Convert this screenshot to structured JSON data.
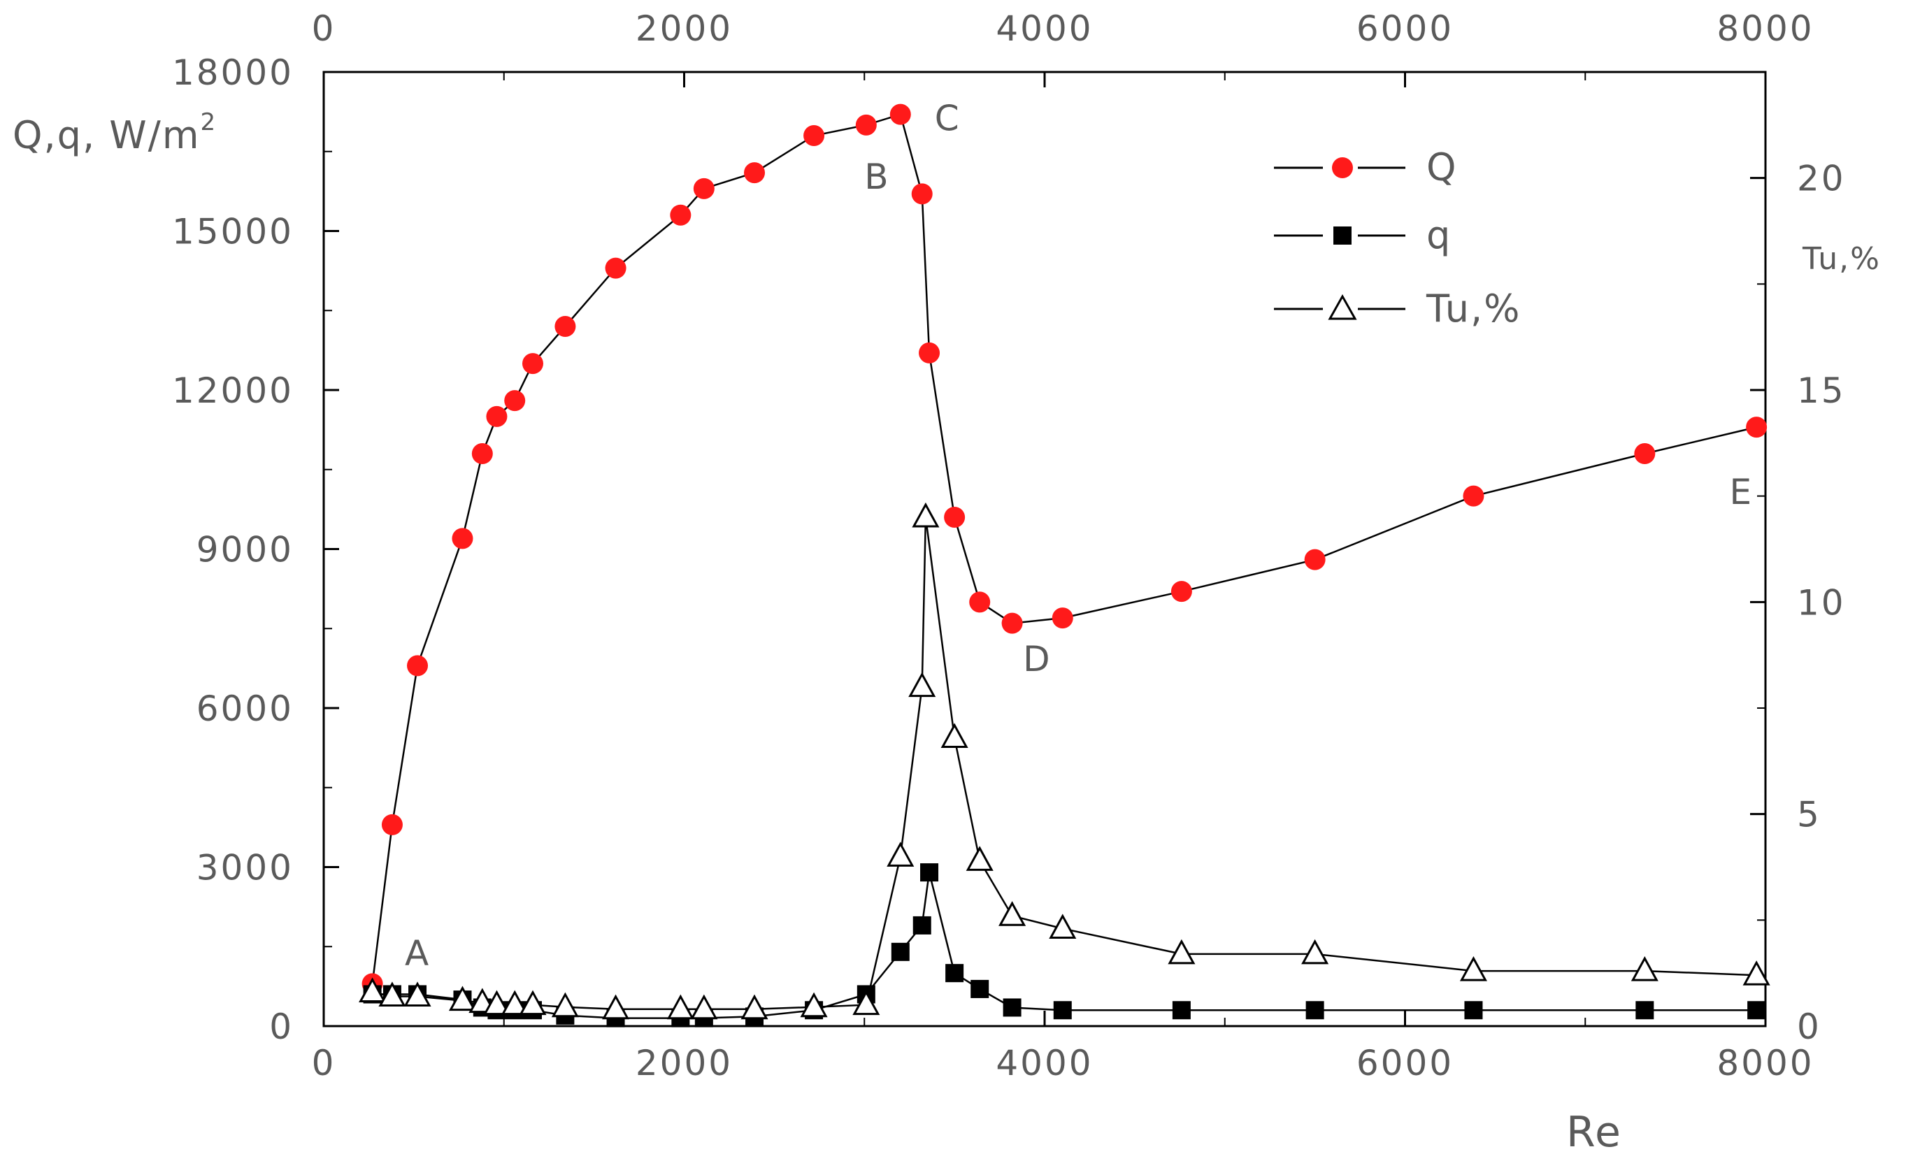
{
  "chart_data": {
    "type": "line",
    "xlabel": "Re",
    "ylabel": "Q,q, W/m",
    "ylabel_superscript": "2",
    "y2label": "Tu,%",
    "xlim": [
      0,
      8000
    ],
    "ylim": [
      0,
      18000
    ],
    "y2lim": [
      0,
      22.5
    ],
    "x_ticks": [
      "0",
      "2000",
      "4000",
      "6000",
      "8000"
    ],
    "x_tick_values": [
      0,
      2000,
      4000,
      6000,
      8000
    ],
    "y_ticks": [
      "0",
      "3000",
      "6000",
      "9000",
      "12000",
      "15000",
      "18000"
    ],
    "y_tick_values": [
      0,
      3000,
      6000,
      9000,
      12000,
      15000,
      18000
    ],
    "y2_ticks": [
      "0",
      "5",
      "10",
      "15",
      "20"
    ],
    "y2_tick_values": [
      0,
      5,
      10,
      15,
      20
    ],
    "grid": false,
    "legend_position": "top-right",
    "series": [
      {
        "name": "Q",
        "axis": "left",
        "marker": "filled-circle",
        "color": "#ff1a1a",
        "x": [
          270,
          380,
          520,
          770,
          880,
          960,
          1060,
          1160,
          1340,
          1620,
          1980,
          2110,
          2390,
          2720,
          3010,
          3200,
          3320,
          3360,
          3500,
          3640,
          3820,
          4100,
          4760,
          5500,
          6380,
          7330,
          7950
        ],
        "y": [
          800,
          3800,
          6800,
          9200,
          10800,
          11500,
          11800,
          12500,
          13200,
          14300,
          15300,
          15800,
          16100,
          16800,
          17000,
          17200,
          15700,
          12700,
          9600,
          8000,
          7600,
          7700,
          8200,
          8800,
          10000,
          10800,
          11300
        ]
      },
      {
        "name": "q",
        "axis": "left",
        "marker": "filled-square",
        "color": "#000000",
        "x": [
          270,
          380,
          520,
          770,
          880,
          960,
          1060,
          1160,
          1340,
          1620,
          1980,
          2110,
          2390,
          2720,
          3010,
          3200,
          3320,
          3360,
          3500,
          3640,
          3820,
          4100,
          4760,
          5500,
          6380,
          7330,
          7950
        ],
        "y": [
          600,
          600,
          600,
          500,
          350,
          300,
          300,
          300,
          200,
          150,
          150,
          150,
          180,
          300,
          600,
          1400,
          1900,
          2900,
          1000,
          700,
          350,
          300,
          300,
          300,
          300,
          300,
          300
        ]
      },
      {
        "name": "Tu,%",
        "axis": "right",
        "marker": "open-triangle",
        "color": "#000000",
        "x": [
          270,
          380,
          520,
          770,
          880,
          960,
          1060,
          1160,
          1340,
          1620,
          1980,
          2110,
          2390,
          2720,
          3010,
          3200,
          3320,
          3340,
          3500,
          3640,
          3820,
          4100,
          4760,
          5500,
          6380,
          7330,
          7950
        ],
        "y": [
          0.8,
          0.7,
          0.7,
          0.6,
          0.55,
          0.5,
          0.5,
          0.5,
          0.45,
          0.4,
          0.4,
          0.4,
          0.4,
          0.45,
          0.5,
          4.0,
          8.0,
          12.0,
          6.8,
          3.9,
          2.6,
          2.3,
          1.7,
          1.7,
          1.3,
          1.3,
          1.2
        ]
      }
    ],
    "annotations": [
      {
        "text": "A",
        "x": 450,
        "y": 1150
      },
      {
        "text": "B",
        "x": 3000,
        "y": 15800
      },
      {
        "text": "C",
        "x": 3390,
        "y": 16900
      },
      {
        "text": "D",
        "x": 3880,
        "y": 6700
      },
      {
        "text": "E",
        "x": 7800,
        "y": 9850
      }
    ]
  }
}
